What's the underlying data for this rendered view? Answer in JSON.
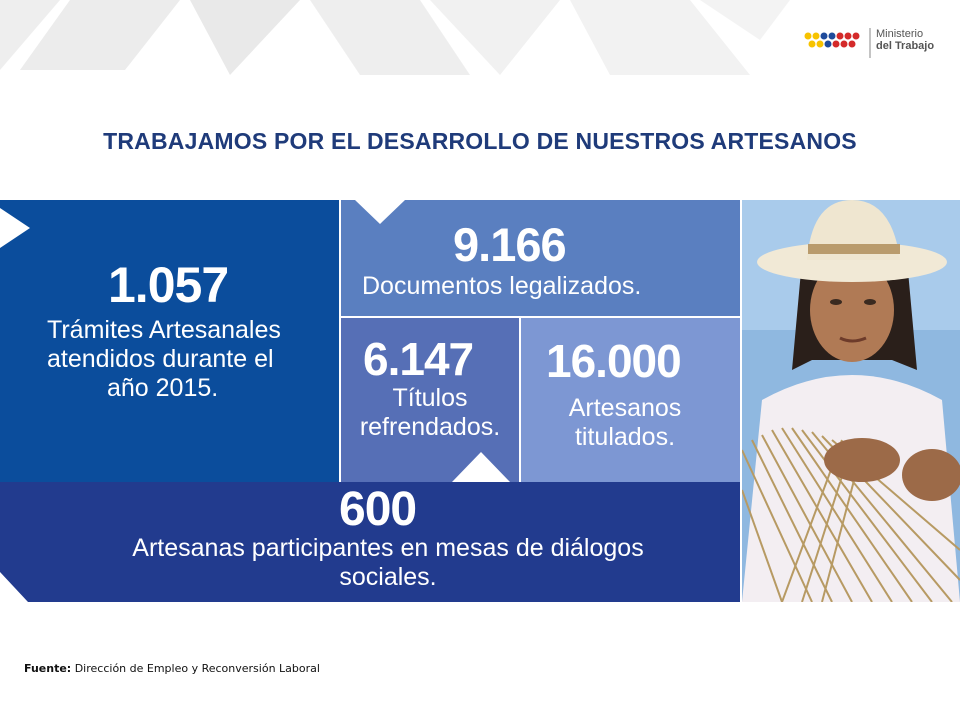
{
  "header": {
    "logo": {
      "line1": "Ministerio",
      "line2": "del Trabajo",
      "colors": [
        "#f7c300",
        "#1e4b9c",
        "#d42a2a"
      ]
    }
  },
  "title": "TRABAJAMOS POR EL DESARROLLO DE NUESTROS ARTESANOS",
  "stats": {
    "tramites": {
      "number": "1.057",
      "lines": [
        "Trámites Artesanales",
        "atendidos durante el",
        "año 2015."
      ]
    },
    "documentos": {
      "number": "9.166",
      "lines": [
        "Documentos legalizados."
      ]
    },
    "titulos": {
      "number": "6.147",
      "lines": [
        "Títulos",
        "refrendados."
      ]
    },
    "artesanos": {
      "number": "16.000",
      "lines": [
        "Artesanos",
        "titulados."
      ]
    },
    "participantes": {
      "number": "600",
      "lines": [
        "Artesanas participantes en mesas de diálogos",
        "sociales."
      ]
    }
  },
  "footer": {
    "label": "Fuente:",
    "text": " Dirección de Empleo y Reconversión Laboral"
  },
  "colors": {
    "title": "#1f3b7a",
    "panel_dark": "#0b4d9c",
    "panel_mid": "#5a7fc0",
    "panel_violet": "#566fb6",
    "panel_light": "#7d97d3",
    "panel_navy": "#223b8e"
  }
}
